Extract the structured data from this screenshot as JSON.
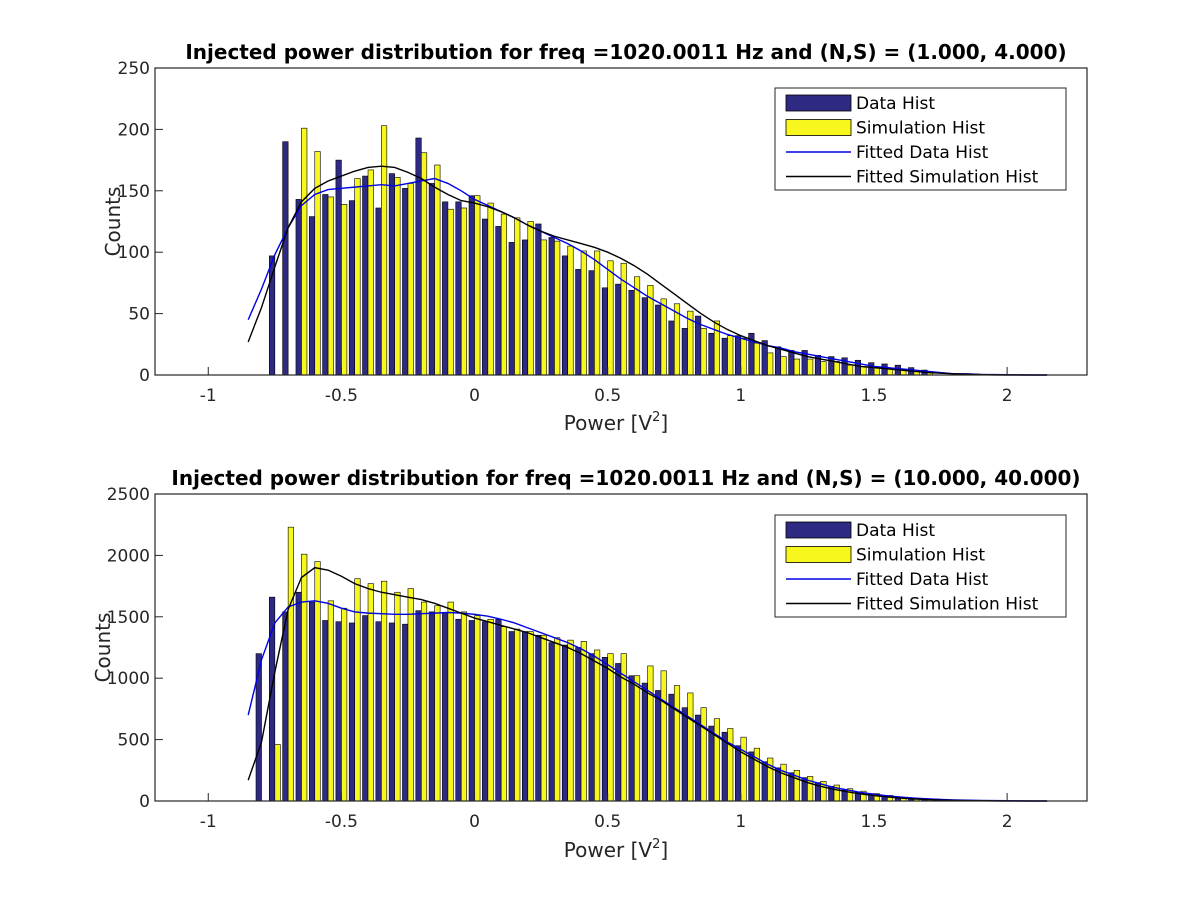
{
  "chart_data": [
    {
      "type": "bar",
      "title": "Injected power distribution for freq =1020.0011 Hz and (N,S) = (1.000, 4.000)",
      "xlabel": "Power [V",
      "xlabel_sup": "2",
      "xlabel_end": "]",
      "ylabel": "Counts",
      "xlim": [
        -1.2,
        2.3
      ],
      "ylim": [
        0,
        250
      ],
      "xticks": [
        -1,
        -0.5,
        0,
        0.5,
        1,
        1.5,
        2
      ],
      "xtick_labels": [
        "-1",
        "-0.5",
        "0",
        "0.5",
        "1",
        "1.5",
        "2"
      ],
      "yticks": [
        0,
        50,
        100,
        150,
        200,
        250
      ],
      "ytick_labels": [
        "0",
        "50",
        "100",
        "150",
        "200",
        "250"
      ],
      "legend_position": "top-right",
      "legend": [
        "Data Hist",
        "Simulation Hist",
        "Fitted Data Hist",
        "Fitted Simulation Hist"
      ],
      "series": [
        {
          "name": "Data Hist",
          "kind": "bar",
          "color": "#2e2a84",
          "x": [
            -0.75,
            -0.7,
            -0.65,
            -0.6,
            -0.55,
            -0.5,
            -0.45,
            -0.4,
            -0.35,
            -0.3,
            -0.25,
            -0.2,
            -0.15,
            -0.1,
            -0.05,
            0.0,
            0.05,
            0.1,
            0.15,
            0.2,
            0.25,
            0.3,
            0.35,
            0.4,
            0.45,
            0.5,
            0.55,
            0.6,
            0.65,
            0.7,
            0.75,
            0.8,
            0.85,
            0.9,
            0.95,
            1.0,
            1.05,
            1.1,
            1.15,
            1.2,
            1.25,
            1.3,
            1.35,
            1.4,
            1.45,
            1.5,
            1.55,
            1.6,
            1.65,
            1.7
          ],
          "values": [
            97,
            190,
            143,
            129,
            147,
            175,
            142,
            162,
            136,
            164,
            152,
            193,
            156,
            141,
            141,
            146,
            127,
            121,
            108,
            110,
            123,
            112,
            97,
            86,
            85,
            71,
            74,
            69,
            63,
            57,
            44,
            38,
            48,
            34,
            30,
            32,
            34,
            28,
            23,
            20,
            20,
            16,
            15,
            14,
            12,
            10,
            9,
            8,
            6,
            4
          ]
        },
        {
          "name": "Simulation Hist",
          "kind": "bar",
          "color": "#f7f71e",
          "x": [
            -0.75,
            -0.7,
            -0.65,
            -0.6,
            -0.55,
            -0.5,
            -0.45,
            -0.4,
            -0.35,
            -0.3,
            -0.25,
            -0.2,
            -0.15,
            -0.1,
            -0.05,
            0.0,
            0.05,
            0.1,
            0.15,
            0.2,
            0.25,
            0.3,
            0.35,
            0.4,
            0.45,
            0.5,
            0.55,
            0.6,
            0.65,
            0.7,
            0.75,
            0.8,
            0.85,
            0.9,
            0.95,
            1.0,
            1.05,
            1.1,
            1.15,
            1.2,
            1.25,
            1.3,
            1.35,
            1.4,
            1.45,
            1.5,
            1.55,
            1.6,
            1.65,
            1.7
          ],
          "values": [
            0,
            0,
            201,
            182,
            145,
            139,
            160,
            167,
            203,
            161,
            156,
            181,
            171,
            135,
            136,
            146,
            140,
            131,
            128,
            125,
            110,
            109,
            105,
            101,
            101,
            93,
            91,
            80,
            73,
            62,
            58,
            52,
            38,
            44,
            32,
            30,
            26,
            18,
            15,
            13,
            13,
            11,
            11,
            8,
            7,
            6,
            5,
            4,
            3,
            2
          ]
        },
        {
          "name": "Fitted Data Hist",
          "kind": "line",
          "color": "#0000e6",
          "x": [
            -0.85,
            -0.8,
            -0.75,
            -0.7,
            -0.65,
            -0.6,
            -0.55,
            -0.5,
            -0.45,
            -0.4,
            -0.35,
            -0.3,
            -0.25,
            -0.2,
            -0.15,
            -0.1,
            -0.05,
            0.0,
            0.05,
            0.1,
            0.15,
            0.2,
            0.25,
            0.3,
            0.35,
            0.4,
            0.45,
            0.5,
            0.55,
            0.6,
            0.65,
            0.7,
            0.75,
            0.8,
            0.85,
            0.9,
            0.95,
            1.0,
            1.05,
            1.1,
            1.15,
            1.2,
            1.25,
            1.3,
            1.35,
            1.4,
            1.45,
            1.5,
            1.55,
            1.6,
            1.65,
            1.7,
            1.75,
            1.8,
            1.85,
            1.9,
            1.95,
            2.0,
            2.05,
            2.1,
            2.15
          ],
          "values": [
            45,
            70,
            98,
            120,
            138,
            147,
            151,
            152,
            153,
            154,
            155,
            154,
            156,
            158,
            160,
            156,
            150,
            143,
            138,
            133,
            128,
            122,
            117,
            112,
            107,
            101,
            94,
            86,
            78,
            71,
            64,
            58,
            52,
            46,
            41,
            37,
            33,
            30,
            27,
            24,
            22,
            19,
            17,
            15,
            13,
            11,
            9,
            7,
            6,
            5,
            4,
            3,
            2,
            1,
            1,
            0.5,
            0.3,
            0.2,
            0.1,
            0,
            0
          ]
        },
        {
          "name": "Fitted Simulation Hist",
          "kind": "line",
          "color": "#000000",
          "x": [
            -0.85,
            -0.8,
            -0.75,
            -0.7,
            -0.65,
            -0.6,
            -0.55,
            -0.5,
            -0.45,
            -0.4,
            -0.35,
            -0.3,
            -0.25,
            -0.2,
            -0.15,
            -0.1,
            -0.05,
            0.0,
            0.05,
            0.1,
            0.15,
            0.2,
            0.25,
            0.3,
            0.35,
            0.4,
            0.45,
            0.5,
            0.55,
            0.6,
            0.65,
            0.7,
            0.75,
            0.8,
            0.85,
            0.9,
            0.95,
            1.0,
            1.05,
            1.1,
            1.15,
            1.2,
            1.25,
            1.3,
            1.35,
            1.4,
            1.45,
            1.5,
            1.55,
            1.6,
            1.65,
            1.7,
            1.75,
            1.8,
            1.85,
            1.9,
            1.95,
            2.0,
            2.05,
            2.1,
            2.15
          ],
          "values": [
            27,
            55,
            88,
            120,
            141,
            152,
            158,
            162,
            166,
            169,
            170,
            169,
            165,
            160,
            153,
            147,
            142,
            140,
            137,
            133,
            128,
            122,
            117,
            113,
            110,
            107,
            104,
            100,
            95,
            89,
            82,
            74,
            66,
            58,
            50,
            43,
            37,
            32,
            28,
            24,
            21,
            18,
            15,
            13,
            11,
            9,
            7,
            6,
            5,
            4,
            3,
            2,
            1.5,
            1,
            0.6,
            0.3,
            0.1,
            0,
            0,
            0,
            0
          ]
        }
      ]
    },
    {
      "type": "bar",
      "title": "Injected power distribution for freq =1020.0011 Hz and (N,S) = (10.000, 40.000)",
      "xlabel": "Power [V",
      "xlabel_sup": "2",
      "xlabel_end": "]",
      "ylabel": "Counts",
      "xlim": [
        -1.2,
        2.3
      ],
      "ylim": [
        0,
        2500
      ],
      "xticks": [
        -1,
        -0.5,
        0,
        0.5,
        1,
        1.5,
        2
      ],
      "xtick_labels": [
        "-1",
        "-0.5",
        "0",
        "0.5",
        "1",
        "1.5",
        "2"
      ],
      "yticks": [
        0,
        500,
        1000,
        1500,
        2000,
        2500
      ],
      "ytick_labels": [
        "0",
        "500",
        "1000",
        "1500",
        "2000",
        "2500"
      ],
      "legend_position": "top-right",
      "legend": [
        "Data Hist",
        "Simulation Hist",
        "Fitted Data Hist",
        "Fitted Simulation Hist"
      ],
      "series": [
        {
          "name": "Data Hist",
          "kind": "bar",
          "color": "#2e2a84",
          "x": [
            -0.8,
            -0.75,
            -0.7,
            -0.65,
            -0.6,
            -0.55,
            -0.5,
            -0.45,
            -0.4,
            -0.35,
            -0.3,
            -0.25,
            -0.2,
            -0.15,
            -0.1,
            -0.05,
            0.0,
            0.05,
            0.1,
            0.15,
            0.2,
            0.25,
            0.3,
            0.35,
            0.4,
            0.45,
            0.5,
            0.55,
            0.6,
            0.65,
            0.7,
            0.75,
            0.8,
            0.85,
            0.9,
            0.95,
            1.0,
            1.05,
            1.1,
            1.15,
            1.2,
            1.25,
            1.3,
            1.35,
            1.4,
            1.45,
            1.5,
            1.55,
            1.6,
            1.65,
            1.7,
            1.75,
            1.8,
            1.85,
            1.9,
            1.95,
            2.0
          ],
          "values": [
            1200,
            1660,
            1540,
            1700,
            1620,
            1470,
            1460,
            1450,
            1510,
            1460,
            1450,
            1440,
            1550,
            1540,
            1530,
            1480,
            1470,
            1460,
            1480,
            1380,
            1380,
            1350,
            1290,
            1270,
            1250,
            1200,
            1170,
            1120,
            1020,
            960,
            900,
            870,
            760,
            700,
            610,
            560,
            450,
            400,
            320,
            270,
            230,
            190,
            150,
            120,
            90,
            70,
            55,
            40,
            30,
            25,
            20,
            15,
            10,
            8,
            5,
            3,
            2
          ]
        },
        {
          "name": "Simulation Hist",
          "kind": "bar",
          "color": "#f7f71e",
          "x": [
            -0.8,
            -0.75,
            -0.7,
            -0.65,
            -0.6,
            -0.55,
            -0.5,
            -0.45,
            -0.4,
            -0.35,
            -0.3,
            -0.25,
            -0.2,
            -0.15,
            -0.1,
            -0.05,
            0.0,
            0.05,
            0.1,
            0.15,
            0.2,
            0.25,
            0.3,
            0.35,
            0.4,
            0.45,
            0.5,
            0.55,
            0.6,
            0.65,
            0.7,
            0.75,
            0.8,
            0.85,
            0.9,
            0.95,
            1.0,
            1.05,
            1.1,
            1.15,
            1.2,
            1.25,
            1.3,
            1.35,
            1.4,
            1.45,
            1.5,
            1.55,
            1.6,
            1.65,
            1.7,
            1.75,
            1.8,
            1.85,
            1.9,
            1.95,
            2.0
          ],
          "values": [
            0,
            460,
            2230,
            2010,
            1950,
            1630,
            1570,
            1810,
            1770,
            1790,
            1700,
            1730,
            1620,
            1590,
            1620,
            1540,
            1510,
            1480,
            1420,
            1400,
            1380,
            1350,
            1330,
            1310,
            1300,
            1230,
            1200,
            1200,
            1020,
            1100,
            1060,
            940,
            880,
            760,
            670,
            590,
            520,
            430,
            350,
            300,
            250,
            200,
            160,
            130,
            100,
            80,
            60,
            45,
            30,
            20,
            15,
            10,
            7,
            5,
            3,
            2,
            1
          ]
        },
        {
          "name": "Fitted Data Hist",
          "kind": "line",
          "color": "#0000e6",
          "x": [
            -0.85,
            -0.8,
            -0.75,
            -0.7,
            -0.65,
            -0.6,
            -0.55,
            -0.5,
            -0.45,
            -0.4,
            -0.35,
            -0.3,
            -0.25,
            -0.2,
            -0.15,
            -0.1,
            -0.05,
            0.0,
            0.05,
            0.1,
            0.15,
            0.2,
            0.25,
            0.3,
            0.35,
            0.4,
            0.45,
            0.5,
            0.55,
            0.6,
            0.65,
            0.7,
            0.75,
            0.8,
            0.85,
            0.9,
            0.95,
            1.0,
            1.05,
            1.1,
            1.15,
            1.2,
            1.25,
            1.3,
            1.35,
            1.4,
            1.45,
            1.5,
            1.55,
            1.6,
            1.65,
            1.7,
            1.75,
            1.8,
            1.85,
            1.9,
            1.95,
            2.0,
            2.05,
            2.1,
            2.15
          ],
          "values": [
            700,
            1150,
            1450,
            1580,
            1620,
            1630,
            1610,
            1570,
            1540,
            1530,
            1525,
            1520,
            1520,
            1525,
            1530,
            1535,
            1530,
            1520,
            1505,
            1480,
            1450,
            1410,
            1370,
            1330,
            1290,
            1240,
            1180,
            1110,
            1040,
            970,
            900,
            830,
            760,
            690,
            620,
            550,
            480,
            420,
            360,
            300,
            250,
            210,
            170,
            140,
            110,
            90,
            70,
            55,
            42,
            32,
            24,
            18,
            13,
            9,
            6,
            4,
            3,
            2,
            1,
            0,
            0
          ]
        },
        {
          "name": "Fitted Simulation Hist",
          "kind": "line",
          "color": "#000000",
          "x": [
            -0.85,
            -0.8,
            -0.75,
            -0.7,
            -0.65,
            -0.6,
            -0.55,
            -0.5,
            -0.45,
            -0.4,
            -0.35,
            -0.3,
            -0.25,
            -0.2,
            -0.15,
            -0.1,
            -0.05,
            0.0,
            0.05,
            0.1,
            0.15,
            0.2,
            0.25,
            0.3,
            0.35,
            0.4,
            0.45,
            0.5,
            0.55,
            0.6,
            0.65,
            0.7,
            0.75,
            0.8,
            0.85,
            0.9,
            0.95,
            1.0,
            1.05,
            1.1,
            1.15,
            1.2,
            1.25,
            1.3,
            1.35,
            1.4,
            1.45,
            1.5,
            1.55,
            1.6,
            1.65,
            1.7,
            1.75,
            1.8,
            1.85,
            1.9,
            1.95,
            2.0,
            2.05,
            2.1,
            2.15
          ],
          "values": [
            170,
            480,
            1050,
            1560,
            1820,
            1900,
            1880,
            1830,
            1770,
            1730,
            1700,
            1680,
            1660,
            1640,
            1610,
            1570,
            1530,
            1490,
            1460,
            1430,
            1400,
            1370,
            1330,
            1290,
            1250,
            1200,
            1140,
            1080,
            1010,
            950,
            880,
            820,
            750,
            680,
            610,
            540,
            470,
            400,
            340,
            280,
            230,
            190,
            150,
            120,
            95,
            75,
            58,
            44,
            33,
            24,
            17,
            12,
            8,
            5,
            3,
            2,
            1,
            0,
            0,
            0,
            0
          ]
        }
      ]
    }
  ]
}
